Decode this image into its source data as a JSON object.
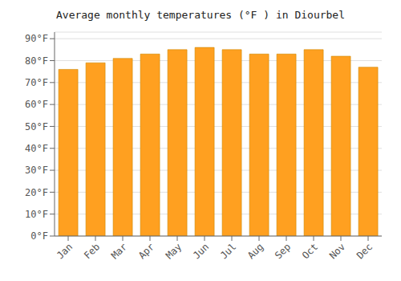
{
  "chart_data": {
    "type": "bar",
    "title": "Average monthly temperatures (°F ) in Diourbel",
    "categories": [
      "Jan",
      "Feb",
      "Mar",
      "Apr",
      "May",
      "Jun",
      "Jul",
      "Aug",
      "Sep",
      "Oct",
      "Nov",
      "Dec"
    ],
    "values": [
      76,
      79,
      81,
      83,
      85,
      86,
      85,
      83,
      83,
      85,
      82,
      77
    ],
    "color": "#FFA020",
    "ylim": [
      0,
      93
    ],
    "yticks": [
      {
        "value": 0,
        "label": "0°F"
      },
      {
        "value": 10,
        "label": "10°F"
      },
      {
        "value": 20,
        "label": "20°F"
      },
      {
        "value": 30,
        "label": "30°F"
      },
      {
        "value": 40,
        "label": "40°F"
      },
      {
        "value": 50,
        "label": "50°F"
      },
      {
        "value": 60,
        "label": "60°F"
      },
      {
        "value": 70,
        "label": "70°F"
      },
      {
        "value": 80,
        "label": "80°F"
      },
      {
        "value": 90,
        "label": "90°F"
      }
    ],
    "grid": true
  }
}
